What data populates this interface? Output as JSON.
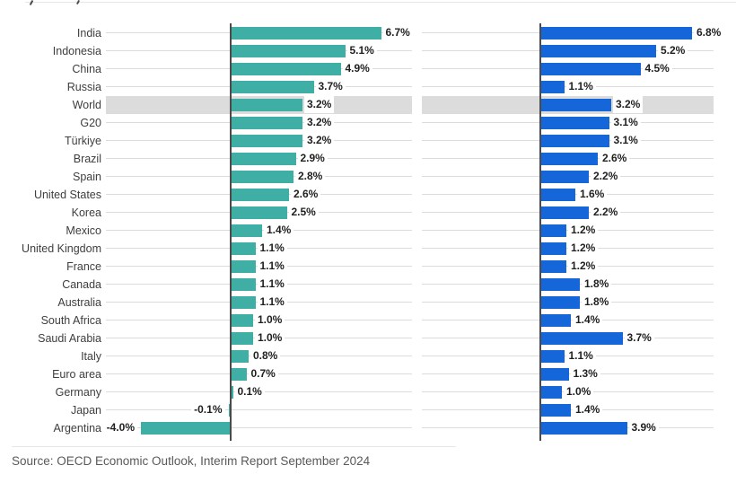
{
  "chart_data": {
    "type": "bar",
    "orientation": "horizontal",
    "unit": "%",
    "categories": [
      "India",
      "Indonesia",
      "China",
      "Russia",
      "World",
      "G20",
      "Türkiye",
      "Brazil",
      "Spain",
      "United States",
      "Korea",
      "Mexico",
      "United Kingdom",
      "France",
      "Canada",
      "Australia",
      "South Africa",
      "Saudi Arabia",
      "Italy",
      "Euro area",
      "Germany",
      "Japan",
      "Argentina"
    ],
    "series": [
      {
        "name": "left-panel-teal",
        "color": "#3FAEA4",
        "values": [
          6.7,
          5.1,
          4.9,
          3.7,
          3.2,
          3.2,
          3.2,
          2.9,
          2.8,
          2.6,
          2.5,
          1.4,
          1.1,
          1.1,
          1.1,
          1.1,
          1.0,
          1.0,
          0.8,
          0.7,
          0.1,
          -0.1,
          -4.0
        ]
      },
      {
        "name": "right-panel-blue",
        "color": "#1566D8",
        "values": [
          6.8,
          5.2,
          4.5,
          1.1,
          3.2,
          3.1,
          3.1,
          2.6,
          2.2,
          1.6,
          2.2,
          1.2,
          1.2,
          1.2,
          1.8,
          1.8,
          1.4,
          3.7,
          1.1,
          1.3,
          1.0,
          1.4,
          3.9
        ]
      }
    ],
    "highlighted_category": "World",
    "data_label_format": "0.0%",
    "legend_visible": false,
    "grid": "row-leader-lines",
    "source": "Source: OECD Economic Outlook, Interim Report September 2024"
  },
  "colors": {
    "left_bar": "#3FAEA4",
    "right_bar": "#1566D8",
    "highlight_band": "#DCDCDC",
    "axis_line": "#4B4B4B",
    "leader_line": "#DCDCDC",
    "label_text": "#3E3E3E",
    "value_text": "#1F1F1F",
    "source_text": "#595959"
  }
}
